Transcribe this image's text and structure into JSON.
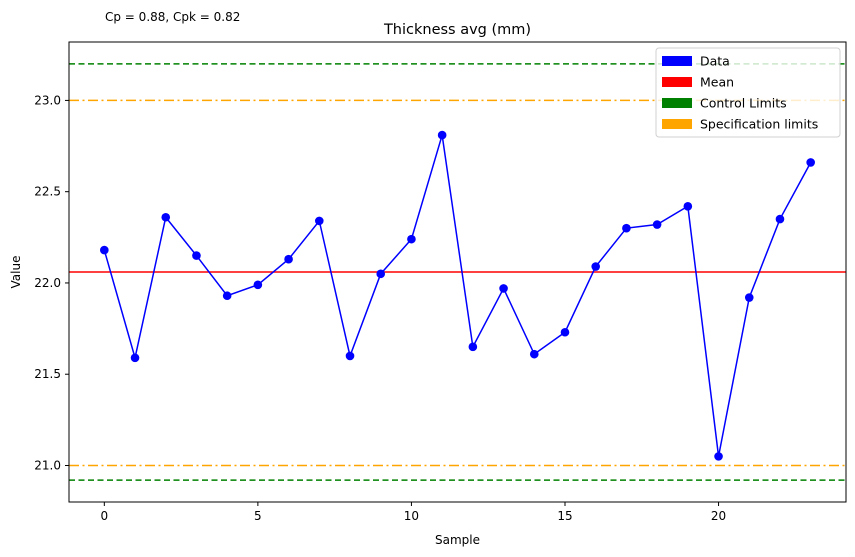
{
  "chart_data": {
    "type": "line",
    "title": "Thickness avg (mm)",
    "annotation": "Cp = 0.88, Cpk = 0.82",
    "xlabel": "Sample",
    "ylabel": "Value",
    "xlim": [
      -1.15,
      24.15
    ],
    "ylim": [
      20.8,
      23.32
    ],
    "xticks": [
      0,
      5,
      10,
      15,
      20
    ],
    "yticks": [
      21.0,
      21.5,
      22.0,
      22.5,
      23.0
    ],
    "ytick_labels": [
      "21.0",
      "21.5",
      "22.0",
      "22.5",
      "23.0"
    ],
    "grid": false,
    "legend_position": "top-right",
    "x": [
      0,
      1,
      2,
      3,
      4,
      5,
      6,
      7,
      8,
      9,
      10,
      11,
      12,
      13,
      14,
      15,
      16,
      17,
      18,
      19,
      20,
      21,
      22,
      23
    ],
    "series": [
      {
        "name": "Data",
        "color": "#0000ff",
        "values": [
          22.18,
          21.59,
          22.36,
          22.15,
          21.93,
          21.99,
          22.13,
          22.34,
          21.6,
          22.05,
          22.24,
          22.81,
          21.65,
          21.97,
          21.61,
          21.73,
          22.09,
          22.3,
          22.32,
          22.42,
          21.05,
          21.92,
          22.35,
          22.66
        ]
      }
    ],
    "reference_lines": [
      {
        "name": "Mean",
        "value": 22.06,
        "color": "#ff0000",
        "style": "solid"
      },
      {
        "name": "Control Limits",
        "value": 23.2,
        "color": "#008000",
        "style": "dashed"
      },
      {
        "name": "Control Limits",
        "value": 20.92,
        "color": "#008000",
        "style": "dashed"
      },
      {
        "name": "Specification limits",
        "value": 23.0,
        "color": "#ffa500",
        "style": "dashdot"
      },
      {
        "name": "Specification limits",
        "value": 21.0,
        "color": "#ffa500",
        "style": "dashdot"
      }
    ],
    "legend": [
      {
        "label": "Data",
        "color": "#0000ff"
      },
      {
        "label": "Mean",
        "color": "#ff0000"
      },
      {
        "label": "Control Limits",
        "color": "#008000"
      },
      {
        "label": "Specification limits",
        "color": "#ffa500"
      }
    ]
  }
}
